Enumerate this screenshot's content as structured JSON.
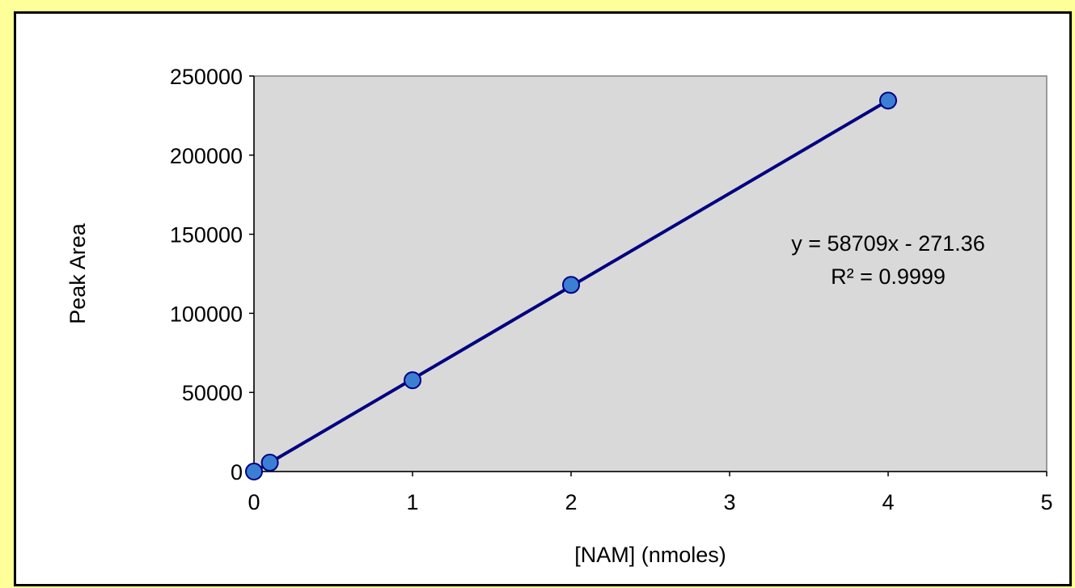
{
  "chart_data": {
    "type": "scatter",
    "title": "",
    "xlabel": "[NAM] (nmoles)",
    "ylabel": "Peak Area",
    "xlim": [
      0,
      5
    ],
    "ylim": [
      0,
      250000
    ],
    "x_ticks": [
      "0",
      "1",
      "2",
      "3",
      "4",
      "5"
    ],
    "y_ticks": [
      "0",
      "50000",
      "100000",
      "150000",
      "200000",
      "250000"
    ],
    "grid": false,
    "legend": "none",
    "series": [
      {
        "x": [
          0,
          0.1,
          1,
          2,
          4
        ],
        "y": [
          0,
          5600,
          57700,
          118000,
          234500
        ]
      }
    ],
    "trendline": {
      "type": "linear",
      "slope": 58709,
      "intercept": -271.36,
      "x_range": [
        0,
        4
      ]
    },
    "annotations": [
      "y = 58709x - 271.36",
      "R² = 0.9999"
    ],
    "colors": {
      "page_background": "#ffff99",
      "plot_background": "#d9d9d9",
      "marker_fill": "#3b7fd4",
      "marker_edge": "#000080",
      "trendline": "#000080"
    }
  }
}
